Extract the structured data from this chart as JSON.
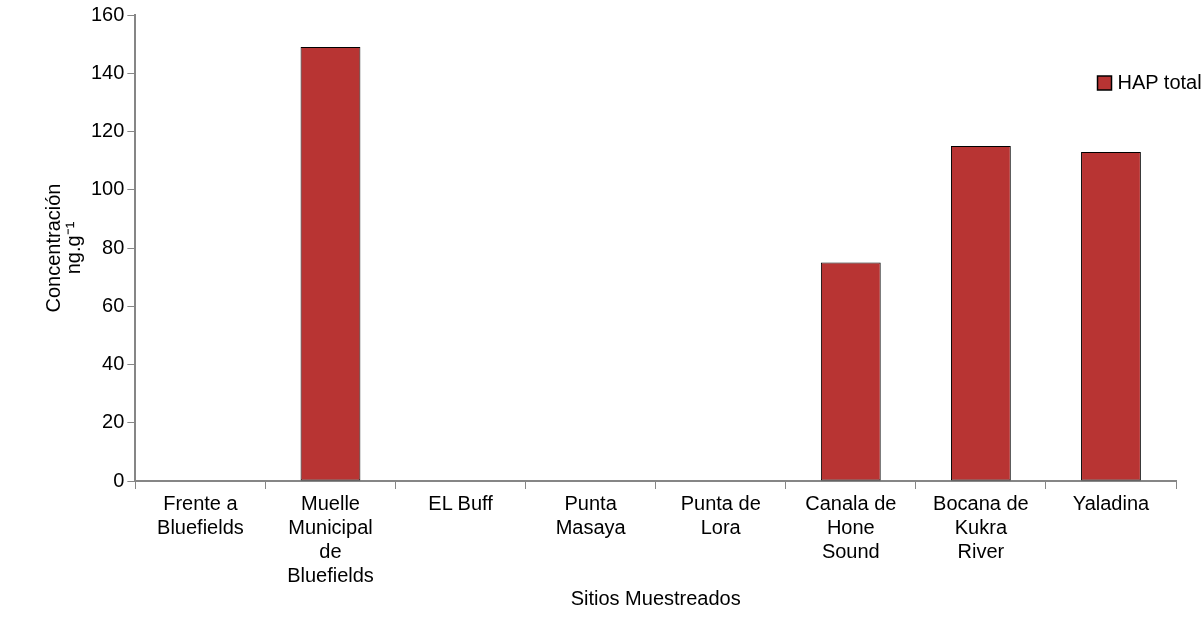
{
  "chart_data": {
    "type": "bar",
    "xlabel": "Sitios Muestreados",
    "ylabel": "Concentración ng.g⁻¹",
    "categories": [
      "Frente a Bluefields",
      "Muelle Municipal de Bluefields",
      "EL Buff",
      "Punta Masaya",
      "Punta de Lora",
      "Canala de Hone Sound",
      "Bocana de Kukra River",
      "Yaladina"
    ],
    "series": [
      {
        "name": "HAP total",
        "color": "#b83433",
        "values": [
          null,
          149,
          null,
          null,
          null,
          75,
          115,
          113
        ]
      }
    ],
    "ylim": [
      0,
      160
    ],
    "yticks": [
      0,
      20,
      40,
      60,
      80,
      100,
      120,
      140,
      160
    ],
    "grid": false,
    "legend": "top right"
  }
}
